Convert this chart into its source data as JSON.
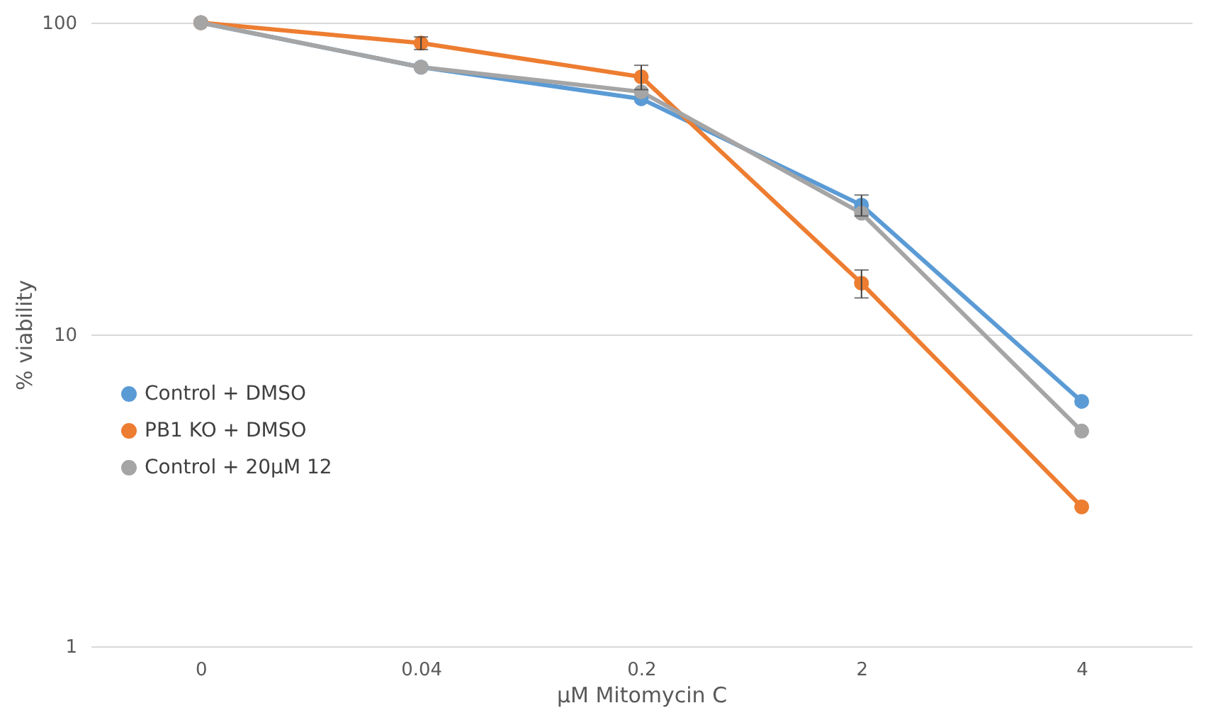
{
  "chart_data": {
    "type": "line",
    "xlabel": "μM Mitomycin C",
    "ylabel": "% viability",
    "categories": [
      "0",
      "0.04",
      "0.2",
      "2",
      "4"
    ],
    "series": [
      {
        "name": "Control + DMSO",
        "color": "#5b9bd5",
        "values": [
          100,
          72,
          57,
          26,
          6.1
        ],
        "errors": [
          null,
          null,
          null,
          2,
          null
        ]
      },
      {
        "name": "PB1 KO + DMSO",
        "color": "#ed7d31",
        "values": [
          100,
          86,
          67,
          14.6,
          2.8
        ],
        "errors": [
          null,
          4,
          6,
          1.5,
          null
        ]
      },
      {
        "name": "Control + 20μM  12",
        "color": "#a5a5a5",
        "values": [
          100,
          72,
          60,
          24.5,
          4.9
        ]
      }
    ],
    "log": "y",
    "ylim": [
      1,
      100
    ],
    "yticks": [
      1,
      10,
      100
    ],
    "grid": "y",
    "legend": "left",
    "marker": "circle",
    "line_style": "solid"
  }
}
